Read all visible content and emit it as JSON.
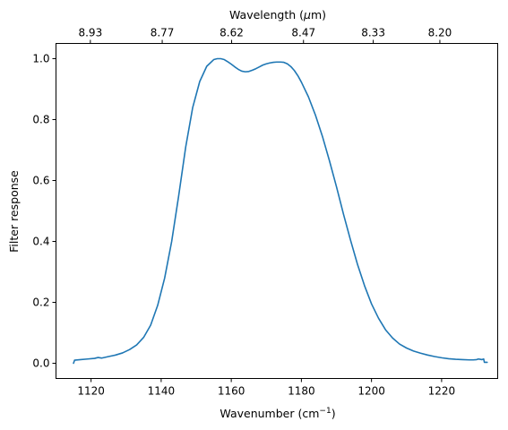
{
  "chart_data": {
    "type": "line",
    "title": "",
    "xlabel": "Wavenumber (cm",
    "xlabel_sup": "−1",
    "xlabel_suffix": ")",
    "ylabel": "Filter response",
    "top_xlabel_prefix": "Wavelength (",
    "top_xlabel_symbol": "μ",
    "top_xlabel_suffix": "m)",
    "xlim": [
      1110,
      1236
    ],
    "ylim": [
      -0.05,
      1.05
    ],
    "xticks": [
      1120,
      1140,
      1160,
      1180,
      1200,
      1220
    ],
    "yticks": [
      0.0,
      0.2,
      0.4,
      0.6,
      0.8,
      1.0
    ],
    "ytick_labels": [
      "0.0",
      "0.2",
      "0.4",
      "0.6",
      "0.8",
      "1.0"
    ],
    "top_ticks": [
      {
        "label": "8.93",
        "wavenumber": 1119.8
      },
      {
        "label": "8.77",
        "wavenumber": 1140.3
      },
      {
        "label": "8.62",
        "wavenumber": 1160.1
      },
      {
        "label": "8.47",
        "wavenumber": 1180.6
      },
      {
        "label": "8.33",
        "wavenumber": 1200.5
      },
      {
        "label": "8.20",
        "wavenumber": 1219.5
      }
    ],
    "grid": false,
    "series": [
      {
        "color": "#1f77b4",
        "x": [
          1115.0,
          1115.3,
          1117,
          1119,
          1121,
          1122,
          1123,
          1125,
          1127,
          1129,
          1131,
          1133,
          1135,
          1137,
          1139,
          1141,
          1143,
          1145,
          1147,
          1149,
          1151,
          1153,
          1155,
          1156,
          1157,
          1158,
          1159,
          1160,
          1161,
          1162,
          1163,
          1164,
          1165,
          1166,
          1167,
          1168,
          1169,
          1170,
          1171,
          1172,
          1173,
          1174,
          1175,
          1176,
          1177,
          1178,
          1179,
          1180,
          1182,
          1184,
          1186,
          1188,
          1190,
          1192,
          1194,
          1196,
          1198,
          1200,
          1202,
          1204,
          1206,
          1208,
          1210,
          1212,
          1214,
          1216,
          1218,
          1220,
          1222,
          1224,
          1226,
          1228,
          1229,
          1230,
          1230.5,
          1231,
          1231.5,
          1232,
          1232.2,
          1233
        ],
        "y": [
          0.0,
          0.01,
          0.012,
          0.014,
          0.016,
          0.019,
          0.017,
          0.022,
          0.027,
          0.034,
          0.045,
          0.06,
          0.085,
          0.125,
          0.19,
          0.28,
          0.4,
          0.55,
          0.71,
          0.84,
          0.925,
          0.975,
          0.997,
          1.0,
          1.0,
          0.997,
          0.99,
          0.982,
          0.973,
          0.965,
          0.959,
          0.957,
          0.958,
          0.962,
          0.967,
          0.973,
          0.979,
          0.983,
          0.986,
          0.988,
          0.989,
          0.989,
          0.988,
          0.983,
          0.974,
          0.961,
          0.944,
          0.923,
          0.875,
          0.815,
          0.745,
          0.665,
          0.58,
          0.49,
          0.405,
          0.325,
          0.255,
          0.195,
          0.148,
          0.11,
          0.083,
          0.063,
          0.05,
          0.04,
          0.033,
          0.027,
          0.022,
          0.018,
          0.015,
          0.013,
          0.012,
          0.011,
          0.011,
          0.012,
          0.014,
          0.013,
          0.012,
          0.014,
          0.003,
          0.003
        ]
      }
    ]
  }
}
